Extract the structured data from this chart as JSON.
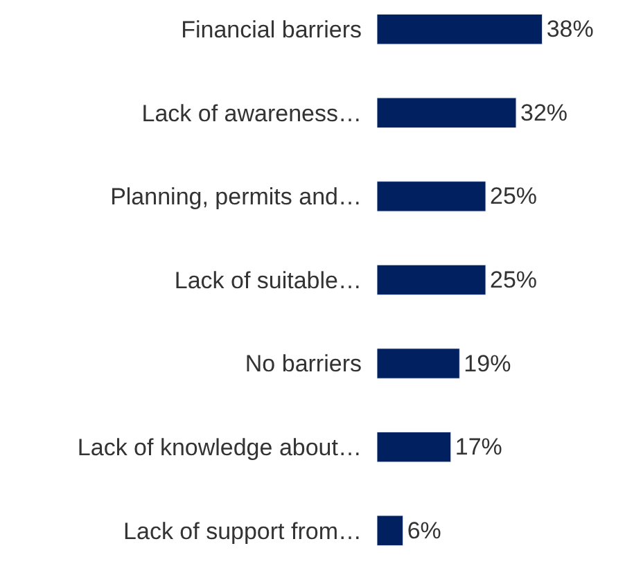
{
  "chart_data": {
    "type": "bar",
    "orientation": "horizontal",
    "categories": [
      "Financial barriers",
      "Lack of awareness…",
      "Planning, permits and…",
      "Lack of suitable…",
      "No barriers",
      "Lack of knowledge about…",
      "Lack of support from…"
    ],
    "values": [
      38,
      32,
      25,
      25,
      19,
      17,
      6
    ],
    "value_labels": [
      "38%",
      "32%",
      "25%",
      "25%",
      "19%",
      "17%",
      "6%"
    ],
    "color": "#002060"
  }
}
